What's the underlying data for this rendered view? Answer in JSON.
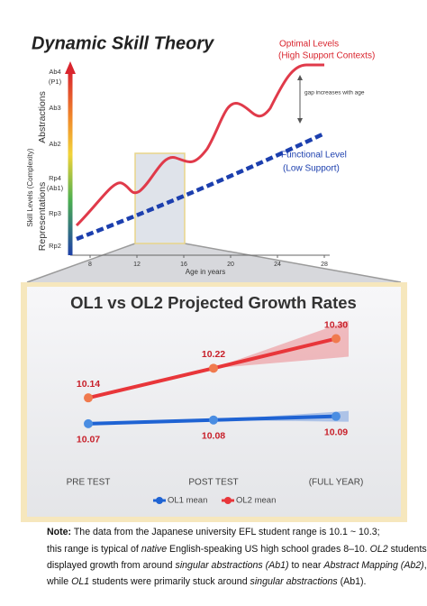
{
  "diagram": {
    "title": "Dynamic Skill Theory",
    "y_axis_label": "Skill Levels (Complexity)",
    "y_groups": [
      "Abstractions",
      "Representations"
    ],
    "y_levels": [
      [
        "Ab4",
        "(P1)"
      ],
      [
        "Ab3"
      ],
      [
        "Ab2"
      ],
      [
        "Rp4",
        "(Ab1)"
      ],
      [
        "Rp3"
      ],
      [
        "Rp2"
      ]
    ],
    "x_ticks": [
      8,
      12,
      16,
      20,
      24,
      28
    ],
    "x_label": "Age in years",
    "optimal": [
      "Optimal Levels",
      "(High Support Contexts)"
    ],
    "functional": [
      "Functional Level",
      "(Low Support)"
    ],
    "gap": "gap increases with age"
  },
  "chart_data": {
    "type": "line",
    "title": "OL1 vs OL2 Projected Growth Rates",
    "categories": [
      "PRE TEST",
      "POST TEST",
      "(FULL YEAR)"
    ],
    "ylim": [
      9.96,
      10.35
    ],
    "legend": "bottom",
    "series": [
      {
        "name": "OL1 mean",
        "color": "#1f63d3",
        "values": [
          10.07,
          10.08,
          10.09
        ],
        "value_labels": [
          "10.07",
          "10.08",
          "10.09"
        ]
      },
      {
        "name": "OL2 mean",
        "color": "#e8363a",
        "values": [
          10.14,
          10.22,
          10.3
        ],
        "value_labels": [
          "10.14",
          "10.22",
          "10.30"
        ]
      }
    ]
  },
  "note": {
    "lines": [
      [
        {
          "text": "Note:",
          "bold": true
        },
        {
          "text": " The data from the Japanese university EFL student range is 10.1 ~ 10.3;"
        }
      ],
      [
        {
          "text": "this range is typical of "
        },
        {
          "text": "native",
          "italic": true
        },
        {
          "text": " English-speaking US high school grades 8–10. "
        },
        {
          "text": "OL2",
          "italic": true
        },
        {
          "text": " students"
        }
      ],
      [
        {
          "text": "displayed growth from around "
        },
        {
          "text": "singular abstractions (Ab1)",
          "italic": true
        },
        {
          "text": " to near "
        },
        {
          "text": "Abstract Mapping (Ab2)",
          "italic": true
        },
        {
          "text": ","
        }
      ],
      [
        {
          "text": "while "
        },
        {
          "text": "OL1",
          "italic": true
        },
        {
          "text": " students were primarily stuck around "
        },
        {
          "text": "singular abstractions",
          "italic": true
        },
        {
          "text": " (Ab1)."
        }
      ]
    ]
  }
}
